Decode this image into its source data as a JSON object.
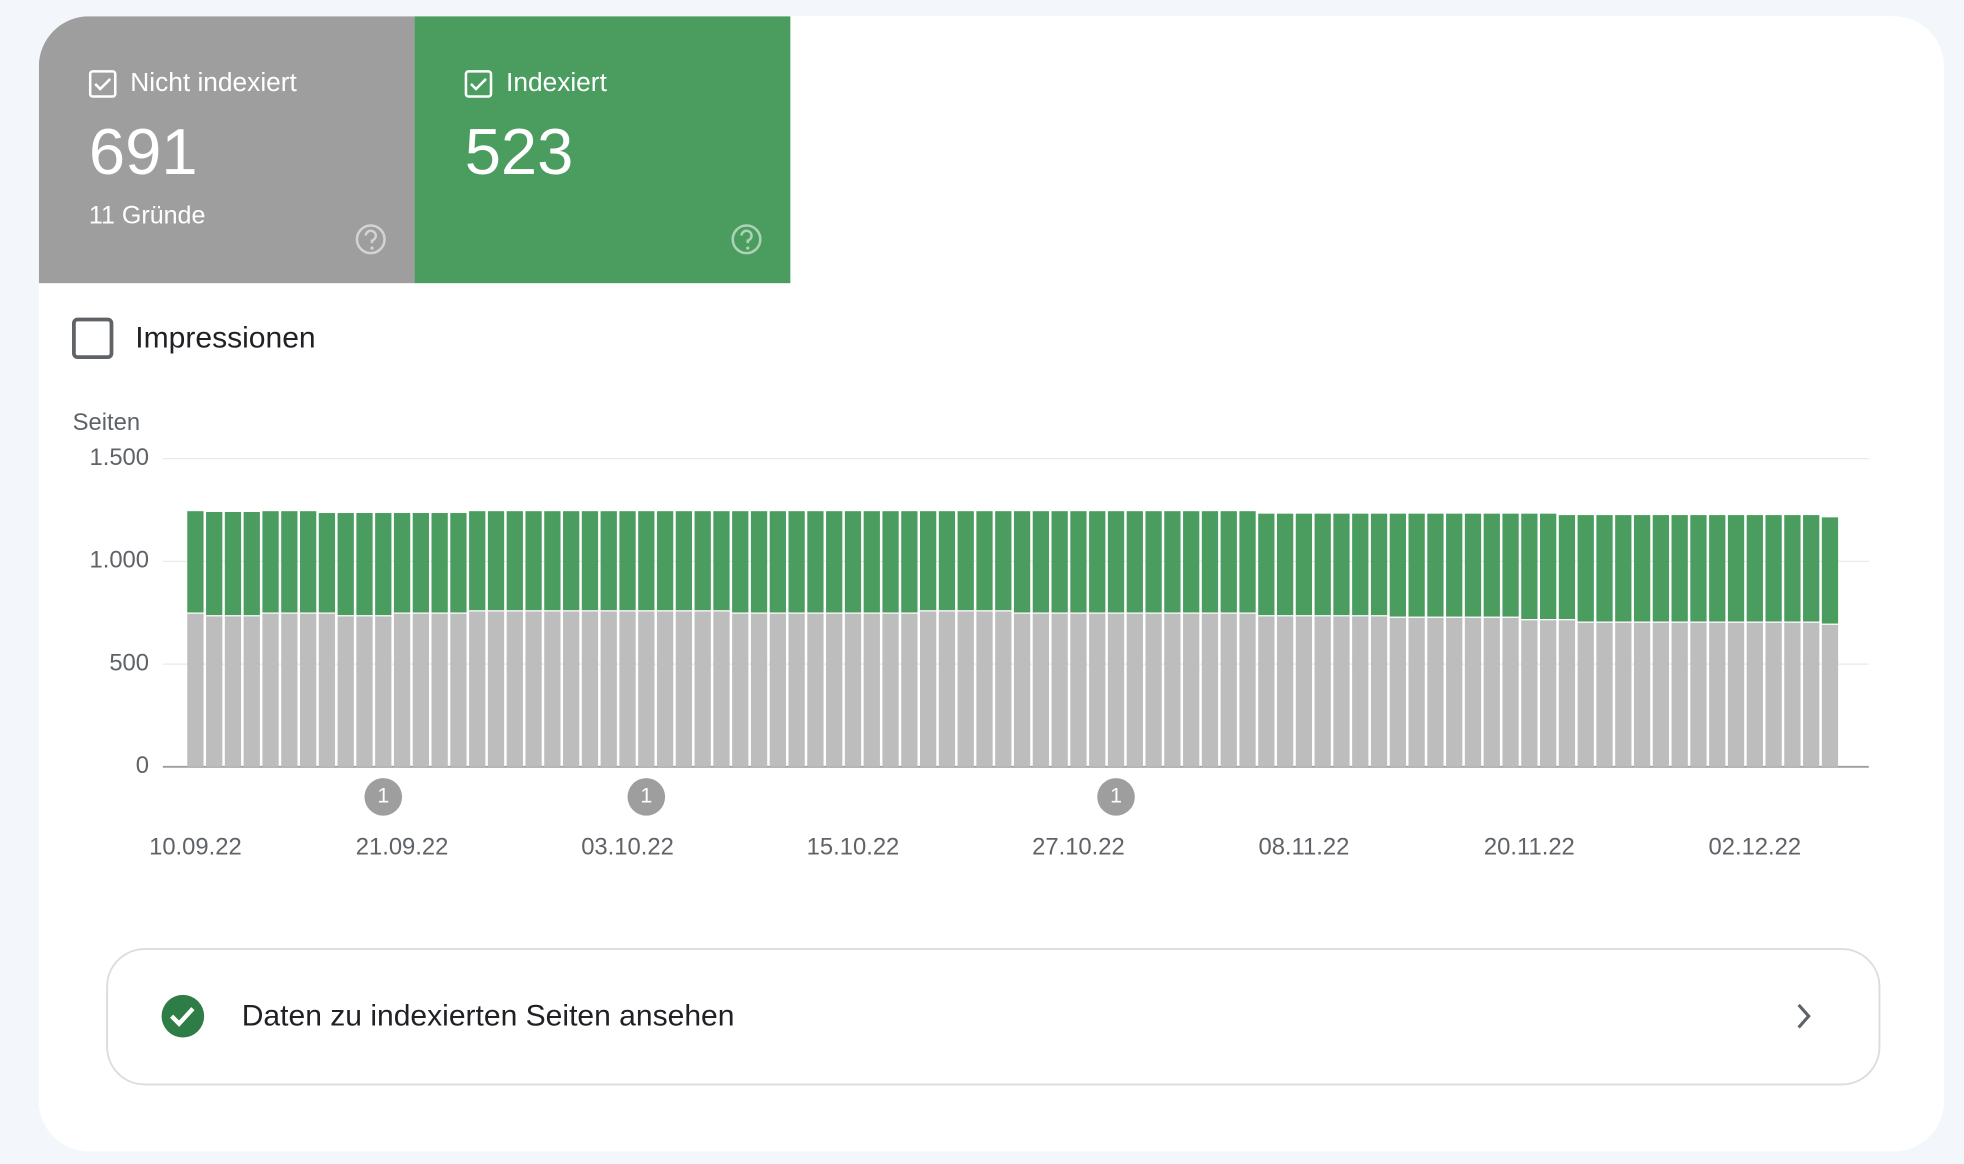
{
  "summary": {
    "cards": [
      {
        "label": "Nicht indexiert",
        "value": "691",
        "detail": "11 Gründe"
      },
      {
        "label": "Indexiert",
        "value": "523"
      }
    ],
    "toggle": "Impressionen",
    "link": "Daten zu indexierten Seiten ansehen"
  },
  "chart_data": {
    "type": "stacked_bar",
    "ylabel": "Seiten",
    "categories": [
      "10.09.22",
      null,
      null,
      null,
      null,
      null,
      null,
      null,
      null,
      null,
      null,
      "21.09.22",
      null,
      null,
      null,
      null,
      null,
      null,
      null,
      null,
      null,
      null,
      null,
      "03.10.22",
      null,
      null,
      null,
      null,
      null,
      null,
      null,
      null,
      null,
      null,
      null,
      "15.10.22",
      null,
      null,
      null,
      null,
      null,
      null,
      null,
      null,
      null,
      null,
      null,
      "27.10.22",
      null,
      null,
      null,
      null,
      null,
      null,
      null,
      null,
      null,
      null,
      null,
      "08.11.22",
      null,
      null,
      null,
      null,
      null,
      null,
      null,
      null,
      null,
      null,
      null,
      "20.11.22",
      null,
      null,
      null,
      null,
      null,
      null,
      null,
      null,
      null,
      null,
      null,
      "02.12.22",
      null,
      null,
      null,
      null
    ],
    "series": [
      {
        "name": "Nicht indexiert",
        "color": "#bdbdbd",
        "values": [
          745,
          732,
          732,
          732,
          745,
          745,
          745,
          745,
          732,
          732,
          732,
          745,
          745,
          745,
          745,
          756,
          756,
          756,
          756,
          756,
          756,
          756,
          756,
          756,
          756,
          756,
          756,
          756,
          756,
          745,
          745,
          745,
          745,
          745,
          745,
          745,
          745,
          745,
          745,
          756,
          756,
          756,
          756,
          756,
          745,
          745,
          745,
          745,
          745,
          745,
          745,
          745,
          745,
          745,
          745,
          745,
          745,
          732,
          732,
          732,
          732,
          732,
          732,
          732,
          725,
          725,
          725,
          725,
          725,
          725,
          725,
          713,
          713,
          713,
          701,
          701,
          701,
          701,
          701,
          701,
          701,
          701,
          701,
          701,
          701,
          701,
          701,
          691
        ]
      },
      {
        "name": "Indexiert",
        "color": "#4a9d5f",
        "values": [
          499,
          508,
          508,
          508,
          499,
          499,
          499,
          490,
          503,
          503,
          503,
          490,
          490,
          490,
          490,
          488,
          488,
          488,
          488,
          488,
          488,
          488,
          488,
          488,
          488,
          488,
          488,
          488,
          488,
          499,
          499,
          499,
          499,
          499,
          499,
          499,
          499,
          499,
          499,
          488,
          488,
          488,
          488,
          488,
          499,
          499,
          499,
          499,
          499,
          499,
          499,
          499,
          499,
          499,
          499,
          499,
          499,
          500,
          500,
          500,
          500,
          500,
          500,
          500,
          507,
          507,
          507,
          507,
          507,
          507,
          507,
          519,
          519,
          512,
          524,
          524,
          524,
          524,
          524,
          524,
          524,
          524,
          524,
          524,
          524,
          524,
          524,
          523
        ]
      }
    ],
    "ylim": [
      0,
      1500
    ],
    "yticks": [
      0,
      500,
      {
        "value": 1000,
        "label": "1.000"
      },
      {
        "value": 1500,
        "label": "1.500"
      }
    ],
    "grid": true,
    "annotations": [
      {
        "index": 10,
        "label": "1"
      },
      {
        "index": 24,
        "label": "1"
      },
      {
        "index": 49,
        "label": "1"
      }
    ]
  }
}
